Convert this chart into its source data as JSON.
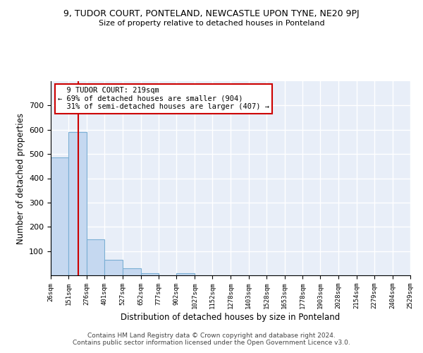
{
  "title": "9, TUDOR COURT, PONTELAND, NEWCASTLE UPON TYNE, NE20 9PJ",
  "subtitle": "Size of property relative to detached houses in Ponteland",
  "xlabel": "Distribution of detached houses by size in Ponteland",
  "ylabel": "Number of detached properties",
  "bar_edges": [
    26,
    151,
    276,
    401,
    527,
    652,
    777,
    902,
    1027,
    1152,
    1278,
    1403,
    1528,
    1653,
    1778,
    1903,
    2028,
    2154,
    2279,
    2404,
    2529
  ],
  "bar_heights": [
    487,
    590,
    149,
    63,
    28,
    10,
    0,
    8,
    0,
    0,
    0,
    0,
    0,
    0,
    0,
    0,
    0,
    0,
    0,
    0
  ],
  "bar_color": "#c5d8f0",
  "bar_edge_color": "#7bafd4",
  "vline_x": 219,
  "vline_color": "#cc0000",
  "annotation_text": "  9 TUDOR COURT: 219sqm\n← 69% of detached houses are smaller (904)\n  31% of semi-detached houses are larger (407) →",
  "annotation_box_color": "white",
  "annotation_box_edge_color": "#cc0000",
  "ylim": [
    0,
    800
  ],
  "yticks": [
    0,
    100,
    200,
    300,
    400,
    500,
    600,
    700,
    800
  ],
  "bg_color": "#e8eef8",
  "grid_color": "white",
  "footer_text": "Contains HM Land Registry data © Crown copyright and database right 2024.\nContains public sector information licensed under the Open Government Licence v3.0.",
  "tick_labels": [
    "26sqm",
    "151sqm",
    "276sqm",
    "401sqm",
    "527sqm",
    "652sqm",
    "777sqm",
    "902sqm",
    "1027sqm",
    "1152sqm",
    "1278sqm",
    "1403sqm",
    "1528sqm",
    "1653sqm",
    "1778sqm",
    "1903sqm",
    "2028sqm",
    "2154sqm",
    "2279sqm",
    "2404sqm",
    "2529sqm"
  ]
}
